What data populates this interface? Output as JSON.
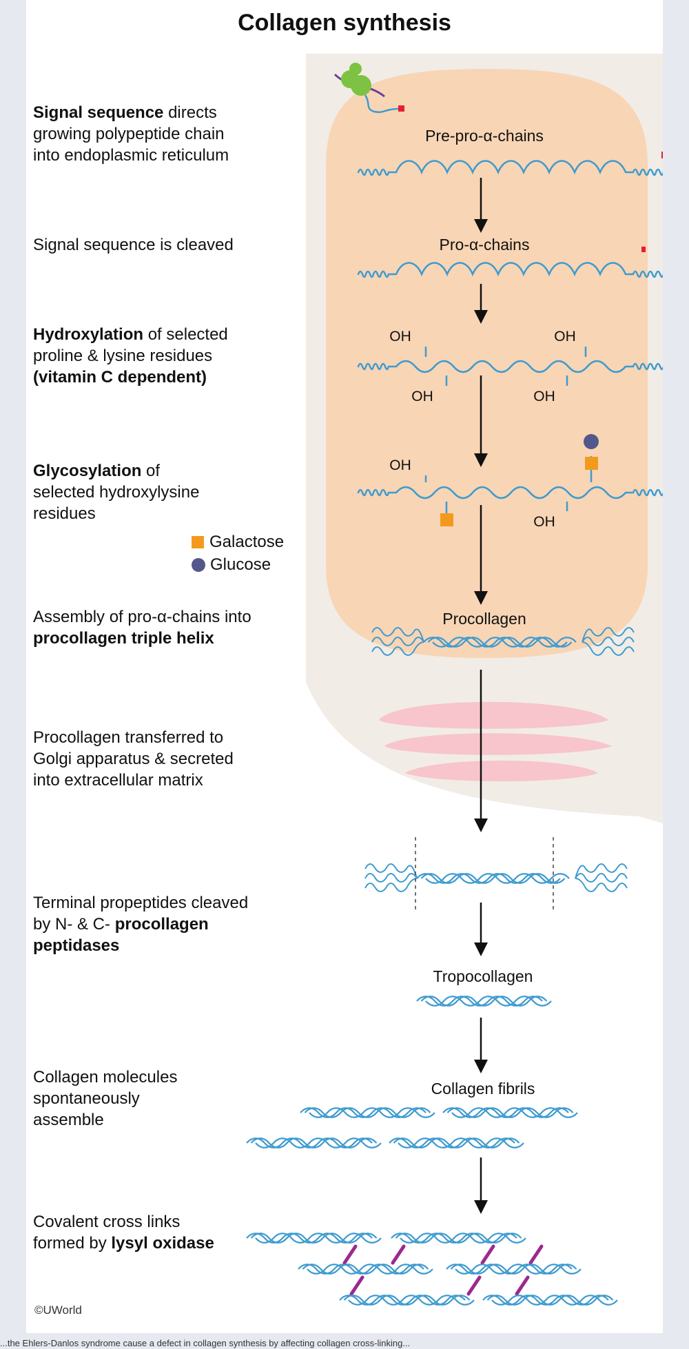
{
  "title": "Collagen synthesis",
  "stages": {
    "pre_pro": "Pre-pro-α-chains",
    "pro": "Pro-α-chains",
    "procollagen": "Procollagen",
    "tropocollagen": "Tropocollagen",
    "fibrils": "Collagen fibrils"
  },
  "oh": "OH",
  "steps": [
    {
      "lines": [
        [
          {
            "t": "Signal sequence",
            "b": true
          },
          {
            "t": " directs"
          }
        ],
        [
          {
            "t": "growing polypeptide chain"
          }
        ],
        [
          {
            "t": "into endoplasmic reticulum"
          }
        ]
      ]
    },
    {
      "lines": [
        [
          {
            "t": "Signal sequence is cleaved"
          }
        ]
      ]
    },
    {
      "lines": [
        [
          {
            "t": "Hydroxylation",
            "b": true
          },
          {
            "t": " of selected"
          }
        ],
        [
          {
            "t": "proline & lysine residues"
          }
        ],
        [
          {
            "t": "(vitamin C dependent)",
            "b": true
          }
        ]
      ]
    },
    {
      "lines": [
        [
          {
            "t": "Glycosylation",
            "b": true
          },
          {
            "t": " of"
          }
        ],
        [
          {
            "t": "selected hydroxylysine"
          }
        ],
        [
          {
            "t": "residues"
          }
        ]
      ]
    },
    {
      "lines": [
        [
          {
            "t": "Assembly of pro-α-chains into"
          }
        ],
        [
          {
            "t": "procollagen triple helix",
            "b": true
          }
        ]
      ]
    },
    {
      "lines": [
        [
          {
            "t": "Procollagen transferred to"
          }
        ],
        [
          {
            "t": "Golgi apparatus & secreted"
          }
        ],
        [
          {
            "t": "into extracellular matrix"
          }
        ]
      ]
    },
    {
      "lines": [
        [
          {
            "t": "Terminal propeptides cleaved"
          }
        ],
        [
          {
            "t": "by N- & C- "
          },
          {
            "t": "procollagen",
            "b": true
          }
        ],
        [
          {
            "t": "peptidases",
            "b": true
          }
        ]
      ]
    },
    {
      "lines": [
        [
          {
            "t": "Collagen molecules"
          }
        ],
        [
          {
            "t": "spontaneously"
          }
        ],
        [
          {
            "t": "assemble"
          }
        ]
      ]
    },
    {
      "lines": [
        [
          {
            "t": "Covalent cross links"
          }
        ],
        [
          {
            "t": "formed by "
          },
          {
            "t": "lysyl oxidase",
            "b": true
          }
        ]
      ]
    }
  ],
  "legend": {
    "galactose": "Galactose",
    "glucose": "Glucose"
  },
  "credit": "©UWorld",
  "footer_fragment": "...the Ehlers-Danlos syndrome cause a defect in collagen synthesis by affecting collagen cross-linking...",
  "colors": {
    "er": "#f8d5b5",
    "cell": "#f1ece6",
    "chain": "#3e9bcf",
    "golgi": "#f7c5cb",
    "signal": "#e5202e",
    "galactose": "#f39a1e",
    "glucose": "#54578c",
    "crosslink": "#9a2a8e",
    "ribosome": "#7dc242",
    "mrna": "#6a3d9a"
  }
}
